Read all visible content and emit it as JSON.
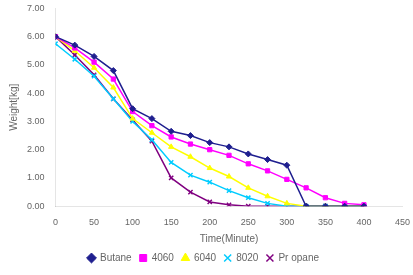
{
  "chart_data": {
    "type": "line",
    "xlabel": "Time(Minute)",
    "ylabel": "Weight[kg]",
    "xlim": [
      0,
      450
    ],
    "ylim": [
      0.0,
      7.0
    ],
    "xticks": [
      0,
      50,
      100,
      150,
      200,
      250,
      300,
      350,
      400,
      450
    ],
    "yticks": [
      {
        "value": 0,
        "label": "0.00"
      },
      {
        "value": 1,
        "label": "1.00"
      },
      {
        "value": 2,
        "label": "2.00"
      },
      {
        "value": 3,
        "label": "3.00"
      },
      {
        "value": 4,
        "label": "4.00"
      },
      {
        "value": 5,
        "label": "5.00"
      },
      {
        "value": 6,
        "label": "6.00"
      },
      {
        "value": 7,
        "label": "7.00"
      }
    ],
    "grid": false,
    "legend": "bottom",
    "x": [
      0,
      25,
      50,
      75,
      100,
      125,
      150,
      175,
      200,
      225,
      250,
      275,
      300,
      325,
      350,
      375,
      400
    ],
    "series": [
      {
        "name": "Butane",
        "color": "#1F1F8F",
        "marker": "diamond",
        "values": [
          6.0,
          5.7,
          5.3,
          4.8,
          3.45,
          3.1,
          2.65,
          2.5,
          2.25,
          2.1,
          1.85,
          1.65,
          1.45,
          0.0,
          0.0,
          0.0,
          0.0
        ]
      },
      {
        "name": "4060",
        "color": "#FF00FF",
        "marker": "square",
        "values": [
          6.0,
          5.6,
          5.1,
          4.5,
          3.35,
          2.85,
          2.45,
          2.2,
          2.0,
          1.8,
          1.5,
          1.25,
          0.95,
          0.65,
          0.3,
          0.1,
          0.05
        ]
      },
      {
        "name": "6040",
        "color": "#FFFF00",
        "marker": "triangle",
        "values": [
          6.0,
          5.5,
          4.9,
          4.2,
          3.1,
          2.6,
          2.1,
          1.75,
          1.35,
          1.05,
          0.65,
          0.35,
          0.1,
          0.0,
          0.0,
          0.0,
          0.0
        ]
      },
      {
        "name": "8020",
        "color": "#00CCFF",
        "marker": "x",
        "values": [
          5.75,
          5.2,
          4.6,
          3.8,
          3.0,
          2.35,
          1.55,
          1.1,
          0.85,
          0.55,
          0.3,
          0.1,
          0.0,
          0.0,
          0.0,
          0.0,
          0.0
        ]
      },
      {
        "name": "Pr opane",
        "color": "#800080",
        "marker": "x",
        "values": [
          6.0,
          5.35,
          4.65,
          3.8,
          3.05,
          2.3,
          1.0,
          0.5,
          0.15,
          0.05,
          0.0,
          0.0,
          0.0,
          0.0,
          0.0,
          0.0,
          0.0
        ]
      }
    ]
  }
}
